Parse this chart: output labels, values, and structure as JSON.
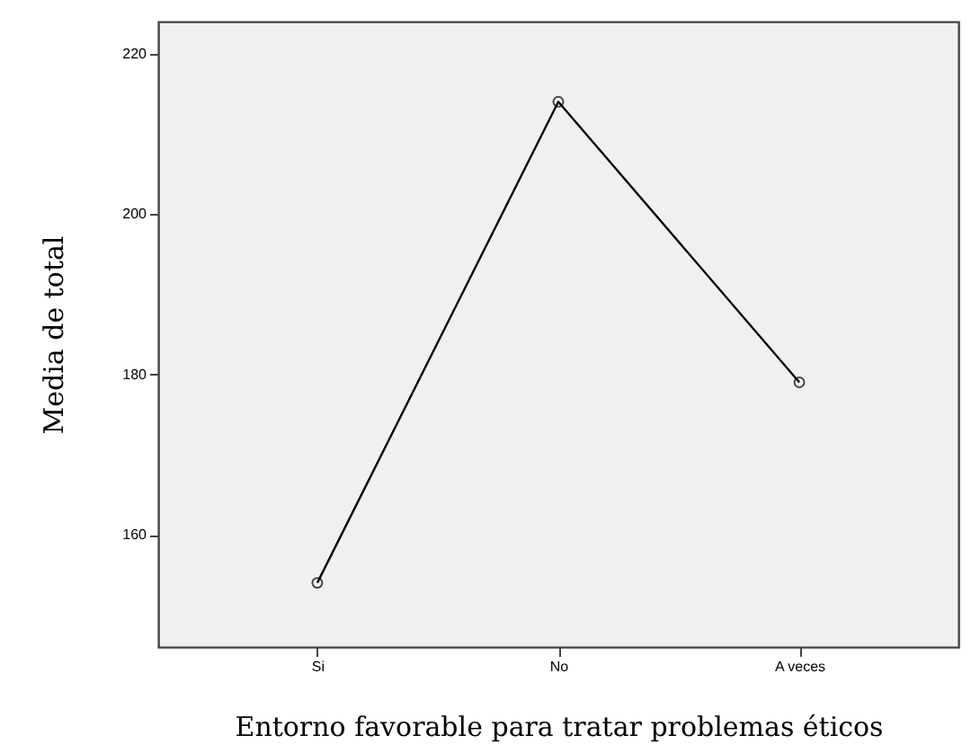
{
  "chart_data": {
    "type": "line",
    "xlabel": "Entorno favorable para tratar problemas éticos",
    "ylabel": "Media de total",
    "categories": [
      "Si",
      "No",
      "A veces"
    ],
    "series": [
      {
        "color": "#000000",
        "values": [
          154,
          214,
          179
        ]
      }
    ],
    "ylim": [
      146,
      224
    ],
    "yticks": [
      160,
      180,
      200,
      220
    ],
    "marker": "circle",
    "line_style": "solid"
  }
}
